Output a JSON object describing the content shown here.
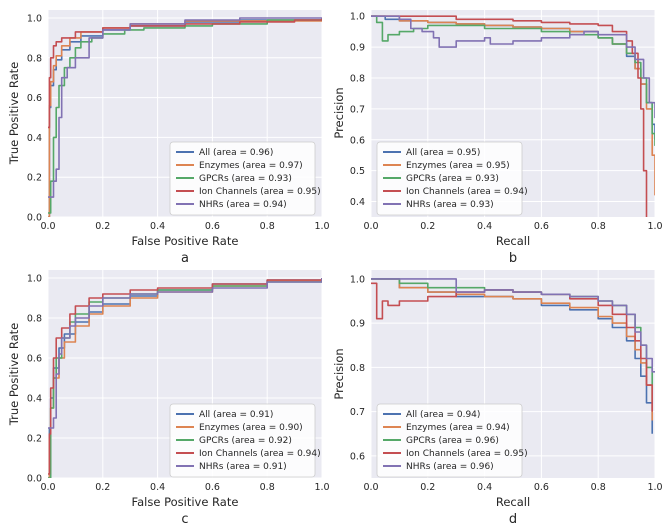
{
  "colors": {
    "All": "#4c72b0",
    "Enzymes": "#dd8452",
    "GPCRs": "#55a868",
    "Ion Channels": "#c44e52",
    "NHRs": "#8172b3",
    "plot_bg": "#eaeaf2",
    "grid": "#ffffff"
  },
  "chart_data": [
    {
      "panel": "a",
      "type": "line",
      "title": "",
      "xlabel": "False Positive Rate",
      "ylabel": "True Positive Rate",
      "xlim": [
        0,
        1
      ],
      "ylim": [
        0,
        1.04
      ],
      "xticks": [
        "0.0",
        "0.2",
        "0.4",
        "0.6",
        "0.8",
        "1.0"
      ],
      "yticks": [
        "0.0",
        "0.2",
        "0.4",
        "0.6",
        "0.8",
        "1.0"
      ],
      "legend_position": "bottom-right",
      "series": [
        {
          "name": "All",
          "legend": "All (area = 0.96)",
          "x": [
            0,
            0.005,
            0.01,
            0.02,
            0.03,
            0.05,
            0.08,
            0.12,
            0.2,
            0.3,
            0.5,
            0.7,
            1.0
          ],
          "y": [
            0,
            0.55,
            0.66,
            0.74,
            0.79,
            0.84,
            0.88,
            0.91,
            0.94,
            0.96,
            0.98,
            0.99,
            1.0
          ]
        },
        {
          "name": "Enzymes",
          "legend": "Enzymes (area = 0.97)",
          "x": [
            0,
            0.005,
            0.01,
            0.02,
            0.03,
            0.05,
            0.08,
            0.12,
            0.2,
            0.3,
            0.5,
            1.0
          ],
          "y": [
            0,
            0.56,
            0.68,
            0.76,
            0.81,
            0.86,
            0.9,
            0.93,
            0.95,
            0.97,
            0.985,
            1.0
          ]
        },
        {
          "name": "GPCRs",
          "legend": "GPCRs (area = 0.93)",
          "x": [
            0,
            0.01,
            0.02,
            0.03,
            0.04,
            0.06,
            0.08,
            0.1,
            0.12,
            0.16,
            0.2,
            0.28,
            0.35,
            0.5,
            0.6,
            0.8,
            1.0
          ],
          "y": [
            0.02,
            0.18,
            0.4,
            0.55,
            0.66,
            0.75,
            0.8,
            0.85,
            0.88,
            0.9,
            0.92,
            0.94,
            0.95,
            0.96,
            0.97,
            0.99,
            1.0
          ]
        },
        {
          "name": "Ion Channels",
          "legend": "Ion Channels (area = 0.95)",
          "x": [
            0,
            0.005,
            0.01,
            0.02,
            0.03,
            0.05,
            0.1,
            0.2,
            0.3,
            0.5,
            0.7,
            0.9,
            1.0
          ],
          "y": [
            0.45,
            0.7,
            0.8,
            0.86,
            0.88,
            0.9,
            0.93,
            0.95,
            0.96,
            0.97,
            0.98,
            0.99,
            1.0
          ]
        },
        {
          "name": "NHRs",
          "legend": "NHRs (area = 0.94)",
          "x": [
            0,
            0.02,
            0.03,
            0.04,
            0.05,
            0.07,
            0.1,
            0.15,
            0.2,
            0.3,
            0.5,
            0.7,
            1.0
          ],
          "y": [
            0.1,
            0.18,
            0.24,
            0.5,
            0.7,
            0.75,
            0.8,
            0.9,
            0.94,
            0.97,
            0.99,
            1.0,
            1.0
          ]
        }
      ]
    },
    {
      "panel": "b",
      "type": "line",
      "title": "",
      "xlabel": "Recall",
      "ylabel": "Precision",
      "xlim": [
        0,
        1
      ],
      "ylim": [
        0.35,
        1.02
      ],
      "xticks": [
        "0.0",
        "0.2",
        "0.4",
        "0.6",
        "0.8",
        "1.0"
      ],
      "yticks": [
        "0.4",
        "0.5",
        "0.6",
        "0.7",
        "0.8",
        "0.9",
        "1.0"
      ],
      "legend_position": "bottom-left",
      "series": [
        {
          "name": "All",
          "legend": "All (area = 0.95)",
          "x": [
            0,
            0.05,
            0.1,
            0.2,
            0.3,
            0.4,
            0.5,
            0.6,
            0.7,
            0.8,
            0.85,
            0.9,
            0.93,
            0.95,
            0.97,
            0.99,
            1.0
          ],
          "y": [
            1.0,
            0.99,
            0.985,
            0.98,
            0.975,
            0.97,
            0.965,
            0.96,
            0.95,
            0.93,
            0.91,
            0.87,
            0.83,
            0.78,
            0.72,
            0.65,
            0.6
          ]
        },
        {
          "name": "Enzymes",
          "legend": "Enzymes (area = 0.95)",
          "x": [
            0,
            0.1,
            0.2,
            0.3,
            0.4,
            0.5,
            0.6,
            0.7,
            0.8,
            0.85,
            0.9,
            0.93,
            0.95,
            0.97,
            0.99,
            1.0
          ],
          "y": [
            1.0,
            0.985,
            0.98,
            0.975,
            0.97,
            0.965,
            0.96,
            0.95,
            0.93,
            0.91,
            0.88,
            0.83,
            0.78,
            0.7,
            0.55,
            0.42
          ]
        },
        {
          "name": "GPCRs",
          "legend": "GPCRs (area = 0.93)",
          "x": [
            0,
            0.02,
            0.04,
            0.06,
            0.1,
            0.15,
            0.2,
            0.3,
            0.4,
            0.5,
            0.6,
            0.7,
            0.8,
            0.85,
            0.9,
            0.93,
            0.95,
            0.97,
            0.99,
            1.0
          ],
          "y": [
            1.0,
            0.98,
            0.92,
            0.94,
            0.95,
            0.96,
            0.97,
            0.97,
            0.96,
            0.96,
            0.95,
            0.94,
            0.93,
            0.91,
            0.88,
            0.85,
            0.8,
            0.72,
            0.62,
            0.58
          ]
        },
        {
          "name": "Ion Channels",
          "legend": "Ion Channels (area = 0.94)",
          "x": [
            0,
            0.1,
            0.2,
            0.3,
            0.5,
            0.6,
            0.7,
            0.8,
            0.85,
            0.9,
            0.92,
            0.94,
            0.95,
            0.96,
            0.97
          ],
          "y": [
            1.0,
            1.0,
            1.0,
            0.99,
            0.985,
            0.98,
            0.975,
            0.97,
            0.95,
            0.92,
            0.88,
            0.8,
            0.7,
            0.5,
            0.35
          ]
        },
        {
          "name": "NHRs",
          "legend": "NHRs (area = 0.93)",
          "x": [
            0,
            0.1,
            0.14,
            0.18,
            0.22,
            0.24,
            0.3,
            0.4,
            0.42,
            0.5,
            0.6,
            0.7,
            0.75,
            0.8,
            0.9,
            0.93,
            0.96,
            0.98,
            1.0
          ],
          "y": [
            1.0,
            0.99,
            0.96,
            0.95,
            0.93,
            0.9,
            0.92,
            0.93,
            0.91,
            0.92,
            0.93,
            0.94,
            0.95,
            0.94,
            0.9,
            0.86,
            0.8,
            0.72,
            0.67
          ]
        }
      ]
    },
    {
      "panel": "c",
      "type": "line",
      "title": "",
      "xlabel": "False Positive Rate",
      "ylabel": "True Positive Rate",
      "xlim": [
        0,
        1
      ],
      "ylim": [
        0,
        1.04
      ],
      "xticks": [
        "0.0",
        "0.2",
        "0.4",
        "0.6",
        "0.8",
        "1.0"
      ],
      "yticks": [
        "0.0",
        "0.2",
        "0.4",
        "0.6",
        "0.8",
        "1.0"
      ],
      "legend_position": "bottom-right",
      "series": [
        {
          "name": "All",
          "legend": "All (area = 0.91)",
          "x": [
            0,
            0.005,
            0.01,
            0.02,
            0.04,
            0.06,
            0.1,
            0.15,
            0.2,
            0.3,
            0.4,
            0.6,
            0.8,
            1.0
          ],
          "y": [
            0,
            0.25,
            0.4,
            0.55,
            0.65,
            0.72,
            0.78,
            0.83,
            0.87,
            0.91,
            0.94,
            0.97,
            0.99,
            1.0
          ]
        },
        {
          "name": "Enzymes",
          "legend": "Enzymes (area = 0.90)",
          "x": [
            0,
            0.005,
            0.01,
            0.02,
            0.04,
            0.06,
            0.1,
            0.15,
            0.2,
            0.3,
            0.4,
            0.6,
            0.8,
            1.0
          ],
          "y": [
            0,
            0.2,
            0.35,
            0.5,
            0.6,
            0.68,
            0.76,
            0.82,
            0.86,
            0.9,
            0.93,
            0.96,
            0.985,
            1.0
          ]
        },
        {
          "name": "GPCRs",
          "legend": "GPCRs (area = 0.92)",
          "x": [
            0,
            0.01,
            0.02,
            0.03,
            0.05,
            0.08,
            0.1,
            0.15,
            0.2,
            0.3,
            0.4,
            0.6,
            0.8,
            1.0
          ],
          "y": [
            0,
            0.35,
            0.5,
            0.6,
            0.7,
            0.78,
            0.82,
            0.88,
            0.9,
            0.92,
            0.94,
            0.96,
            0.98,
            1.0
          ]
        },
        {
          "name": "Ion Channels",
          "legend": "Ion Channels (area = 0.94)",
          "x": [
            0,
            0.005,
            0.01,
            0.02,
            0.03,
            0.05,
            0.08,
            0.1,
            0.15,
            0.2,
            0.3,
            0.4,
            0.6,
            0.8,
            1.0
          ],
          "y": [
            0.02,
            0.22,
            0.45,
            0.6,
            0.7,
            0.75,
            0.82,
            0.86,
            0.9,
            0.92,
            0.94,
            0.95,
            0.97,
            0.99,
            1.0
          ]
        },
        {
          "name": "NHRs",
          "legend": "NHRs (area = 0.91)",
          "x": [
            0,
            0.02,
            0.03,
            0.04,
            0.05,
            0.08,
            0.1,
            0.15,
            0.2,
            0.3,
            0.4,
            0.6,
            0.8,
            1.0
          ],
          "y": [
            0.25,
            0.3,
            0.52,
            0.62,
            0.7,
            0.76,
            0.8,
            0.86,
            0.9,
            0.92,
            0.93,
            0.95,
            0.98,
            1.0
          ]
        }
      ]
    },
    {
      "panel": "d",
      "type": "line",
      "title": "",
      "xlabel": "Recall",
      "ylabel": "Precision",
      "xlim": [
        0,
        1
      ],
      "ylim": [
        0.55,
        1.02
      ],
      "xticks": [
        "0.0",
        "0.2",
        "0.4",
        "0.6",
        "0.8",
        "1.0"
      ],
      "yticks": [
        "0.6",
        "0.7",
        "0.8",
        "0.9",
        "1.0"
      ],
      "legend_position": "bottom-left",
      "series": [
        {
          "name": "All",
          "legend": "All (area = 0.94)",
          "x": [
            0,
            0.1,
            0.2,
            0.3,
            0.4,
            0.5,
            0.6,
            0.7,
            0.8,
            0.85,
            0.9,
            0.93,
            0.95,
            0.97,
            0.99
          ],
          "y": [
            1.0,
            0.98,
            0.97,
            0.96,
            0.96,
            0.955,
            0.94,
            0.93,
            0.91,
            0.89,
            0.86,
            0.82,
            0.78,
            0.72,
            0.65
          ]
        },
        {
          "name": "Enzymes",
          "legend": "Enzymes (area = 0.94)",
          "x": [
            0,
            0.1,
            0.2,
            0.3,
            0.4,
            0.5,
            0.6,
            0.7,
            0.8,
            0.85,
            0.9,
            0.93,
            0.95,
            0.97,
            0.99
          ],
          "y": [
            1.0,
            0.98,
            0.97,
            0.965,
            0.96,
            0.955,
            0.945,
            0.935,
            0.915,
            0.9,
            0.87,
            0.84,
            0.81,
            0.76,
            0.68
          ]
        },
        {
          "name": "GPCRs",
          "legend": "GPCRs (area = 0.96)",
          "x": [
            0,
            0.1,
            0.2,
            0.3,
            0.4,
            0.5,
            0.6,
            0.7,
            0.8,
            0.85,
            0.9,
            0.93,
            0.95,
            0.97,
            0.99
          ],
          "y": [
            1.0,
            0.99,
            0.98,
            0.98,
            0.975,
            0.97,
            0.965,
            0.96,
            0.95,
            0.94,
            0.92,
            0.89,
            0.85,
            0.8,
            0.72
          ]
        },
        {
          "name": "Ion Channels",
          "legend": "Ion Channels (area = 0.95)",
          "x": [
            0,
            0.02,
            0.04,
            0.06,
            0.1,
            0.2,
            0.3,
            0.4,
            0.5,
            0.6,
            0.7,
            0.8,
            0.85,
            0.9,
            0.93,
            0.95,
            0.97,
            0.99
          ],
          "y": [
            0.99,
            0.91,
            0.95,
            0.94,
            0.95,
            0.96,
            0.97,
            0.975,
            0.97,
            0.965,
            0.955,
            0.94,
            0.92,
            0.89,
            0.86,
            0.82,
            0.76,
            0.7
          ]
        },
        {
          "name": "NHRs",
          "legend": "NHRs (area = 0.96)",
          "x": [
            0,
            0.1,
            0.2,
            0.28,
            0.3,
            0.4,
            0.5,
            0.6,
            0.7,
            0.8,
            0.85,
            0.9,
            0.93,
            0.95,
            0.97,
            0.99,
            1.0
          ],
          "y": [
            1.0,
            1.0,
            1.0,
            1.0,
            0.97,
            0.975,
            0.97,
            0.965,
            0.96,
            0.95,
            0.94,
            0.92,
            0.88,
            0.85,
            0.82,
            0.79,
            0.79
          ]
        }
      ]
    }
  ]
}
